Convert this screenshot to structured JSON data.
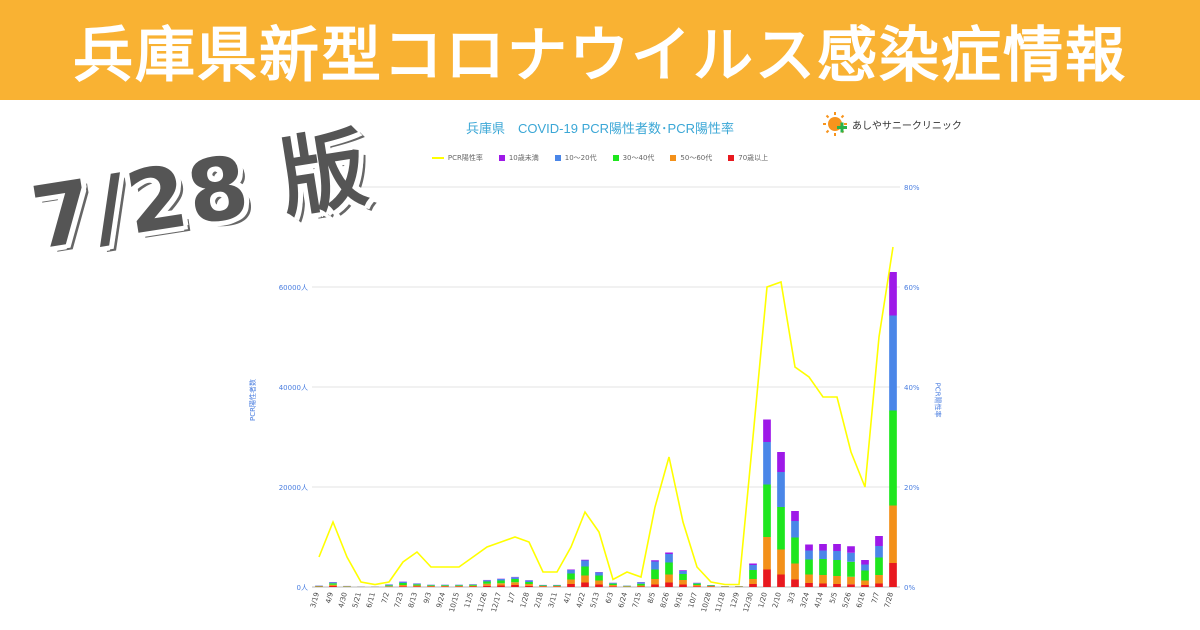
{
  "banner": {
    "title": "兵庫県新型コロナウイルス感染症情報"
  },
  "edition": "7/28 版",
  "clinic": {
    "name": "あしやサニークリニック"
  },
  "chart_data": {
    "type": "bar",
    "stacked": true,
    "title": "兵庫県　COVID-19 PCR陽性者数･PCR陽性率",
    "ylabel_left": "PCR陽性者数",
    "ylabel_right": "PCR陽性率",
    "y_ticks_left": [
      "0人",
      "20000人",
      "40000人",
      "60000人",
      "80"
    ],
    "y_ticks_right": [
      "0%",
      "20%",
      "40%",
      "60%",
      "80%"
    ],
    "ylim_left": [
      0,
      80000
    ],
    "ylim_right": [
      0,
      80
    ],
    "grid": true,
    "legend_position": "top",
    "categories": [
      "3/19",
      "4/9",
      "4/30",
      "5/21",
      "6/11",
      "7/2",
      "7/23",
      "8/13",
      "9/3",
      "9/24",
      "10/15",
      "11/5",
      "11/26",
      "12/17",
      "1/7",
      "1/28",
      "2/18",
      "3/11",
      "4/1",
      "4/22",
      "5/13",
      "6/3",
      "6/24",
      "7/15",
      "8/5",
      "8/26",
      "9/16",
      "10/7",
      "10/28",
      "11/18",
      "12/9",
      "12/30",
      "1/20",
      "2/10",
      "3/3",
      "3/24",
      "4/14",
      "5/5",
      "5/26",
      "6/16",
      "7/7",
      "7/28"
    ],
    "series": [
      {
        "name": "70歳以上",
        "color": "#e8191f",
        "values": [
          80,
          200,
          50,
          20,
          20,
          60,
          150,
          120,
          80,
          80,
          80,
          100,
          250,
          300,
          400,
          250,
          80,
          80,
          600,
          900,
          500,
          150,
          60,
          100,
          500,
          900,
          500,
          150,
          80,
          40,
          40,
          600,
          3500,
          2500,
          1500,
          800,
          700,
          600,
          550,
          400,
          700,
          4800
        ]
      },
      {
        "name": "50～60代",
        "color": "#f39019",
        "values": [
          60,
          250,
          60,
          20,
          20,
          100,
          250,
          180,
          120,
          120,
          120,
          150,
          400,
          450,
          550,
          350,
          120,
          120,
          900,
          1400,
          800,
          250,
          80,
          200,
          1100,
          1600,
          900,
          250,
          120,
          60,
          60,
          1000,
          6500,
          5000,
          3200,
          1700,
          1700,
          1600,
          1500,
          900,
          1700,
          11500
        ]
      },
      {
        "name": "30～40代",
        "color": "#1ee61e",
        "values": [
          80,
          300,
          60,
          20,
          20,
          180,
          400,
          240,
          150,
          150,
          150,
          200,
          450,
          550,
          650,
          400,
          120,
          120,
          1200,
          1800,
          1000,
          280,
          100,
          350,
          1900,
          2400,
          1200,
          280,
          120,
          60,
          60,
          1800,
          10500,
          8500,
          5200,
          3000,
          3200,
          3200,
          3000,
          2000,
          3500,
          19000
        ]
      },
      {
        "name": "10～20代",
        "color": "#4a86e8",
        "values": [
          60,
          200,
          40,
          20,
          20,
          150,
          250,
          150,
          100,
          100,
          100,
          100,
          250,
          300,
          350,
          300,
          80,
          80,
          700,
          1200,
          600,
          150,
          50,
          300,
          1600,
          1700,
          600,
          130,
          60,
          30,
          30,
          1000,
          8500,
          7000,
          3300,
          1800,
          1700,
          1800,
          1800,
          1200,
          2300,
          19000
        ]
      },
      {
        "name": "10歳未満",
        "color": "#9e19e8",
        "values": [
          20,
          50,
          10,
          10,
          10,
          30,
          50,
          30,
          20,
          20,
          20,
          30,
          60,
          60,
          70,
          50,
          20,
          20,
          100,
          150,
          80,
          30,
          10,
          50,
          250,
          300,
          150,
          40,
          20,
          10,
          10,
          300,
          4500,
          4000,
          2000,
          1200,
          1300,
          1400,
          1300,
          900,
          2000,
          8700
        ]
      },
      {
        "name": "PCR陽性率",
        "color": "#ffff00",
        "line": true,
        "values": [
          6,
          13,
          6,
          1,
          0.5,
          1,
          5,
          7,
          4,
          4,
          4,
          6,
          8,
          9,
          10,
          9,
          3,
          3,
          8,
          15,
          11,
          1.5,
          3,
          2,
          16,
          26,
          13,
          4,
          1,
          0.5,
          0.5,
          30,
          60,
          61,
          44,
          42,
          38,
          38,
          27,
          20,
          50,
          68
        ]
      }
    ]
  }
}
